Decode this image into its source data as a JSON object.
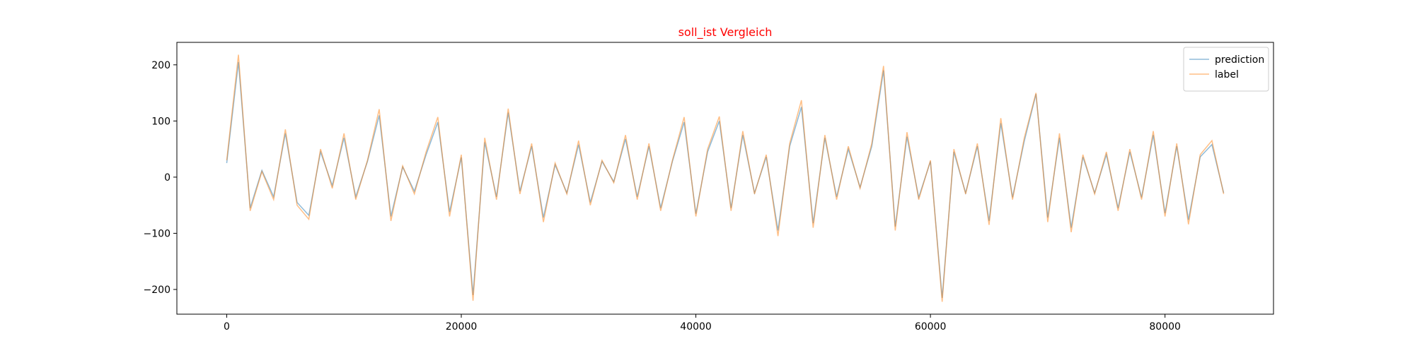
{
  "chart_data": {
    "type": "line",
    "title": "soll_ist Vergleich",
    "title_color": "#ff0000",
    "x": [
      0,
      1000,
      2000,
      3000,
      4000,
      5000,
      6000,
      7000,
      8000,
      9000,
      10000,
      11000,
      12000,
      13000,
      14000,
      15000,
      16000,
      17000,
      18000,
      19000,
      20000,
      21000,
      22000,
      23000,
      24000,
      25000,
      26000,
      27000,
      28000,
      29000,
      30000,
      31000,
      32000,
      33000,
      34000,
      35000,
      36000,
      37000,
      38000,
      39000,
      40000,
      41000,
      42000,
      43000,
      44000,
      45000,
      46000,
      47000,
      48000,
      49000,
      50000,
      51000,
      52000,
      53000,
      54000,
      55000,
      56000,
      57000,
      58000,
      59000,
      60000,
      61000,
      62000,
      63000,
      64000,
      65000,
      66000,
      67000,
      68000,
      69000,
      70000,
      71000,
      72000,
      73000,
      74000,
      75000,
      76000,
      77000,
      78000,
      79000,
      80000,
      81000,
      82000,
      83000,
      84000,
      85000
    ],
    "series": [
      {
        "name": "prediction",
        "color": "#1f77b4",
        "values": [
          25,
          205,
          -55,
          12,
          -35,
          78,
          -45,
          -68,
          45,
          -15,
          70,
          -35,
          28,
          110,
          -70,
          18,
          -25,
          40,
          98,
          -62,
          35,
          -210,
          62,
          -35,
          115,
          -25,
          55,
          -72,
          22,
          -28,
          58,
          -45,
          28,
          -8,
          68,
          -35,
          55,
          -55,
          28,
          98,
          -65,
          45,
          100,
          -55,
          75,
          -28,
          36,
          -95,
          55,
          125,
          -82,
          70,
          -35,
          50,
          -18,
          55,
          190,
          -88,
          72,
          -36,
          28,
          -215,
          45,
          -28,
          55,
          -78,
          96,
          -36,
          64,
          148,
          -72,
          70,
          -90,
          36,
          -28,
          40,
          -55,
          45,
          -36,
          75,
          -64,
          55,
          -76,
          36,
          58,
          -28
        ]
      },
      {
        "name": "label",
        "color": "#ff7f0e",
        "values": [
          30,
          218,
          -60,
          10,
          -40,
          85,
          -50,
          -75,
          50,
          -20,
          78,
          -40,
          30,
          121,
          -78,
          20,
          -30,
          45,
          107,
          -70,
          40,
          -220,
          70,
          -40,
          122,
          -30,
          60,
          -80,
          25,
          -30,
          65,
          -50,
          30,
          -10,
          75,
          -40,
          60,
          -60,
          30,
          107,
          -70,
          50,
          108,
          -60,
          82,
          -30,
          40,
          -105,
          60,
          137,
          -90,
          75,
          -40,
          55,
          -20,
          60,
          198,
          -95,
          80,
          -40,
          30,
          -222,
          50,
          -30,
          60,
          -85,
          105,
          -40,
          70,
          150,
          -80,
          78,
          -98,
          40,
          -30,
          45,
          -60,
          50,
          -40,
          82,
          -70,
          60,
          -84,
          40,
          65,
          -30
        ]
      }
    ],
    "xlim": [
      -4250,
      89250
    ],
    "ylim": [
      -244,
      240
    ],
    "xticks": [
      0,
      20000,
      40000,
      60000,
      80000
    ],
    "yticks": [
      {
        "value": -200,
        "label": "−200"
      },
      {
        "value": -100,
        "label": "−100"
      },
      0,
      100,
      200
    ],
    "legend": "upper right"
  }
}
